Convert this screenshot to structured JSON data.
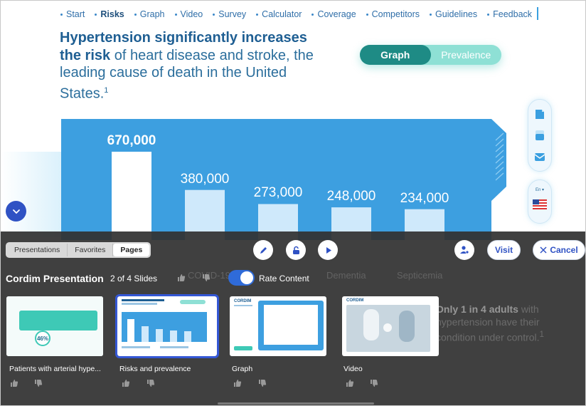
{
  "nav": {
    "items": [
      {
        "label": "Start",
        "active": false
      },
      {
        "label": "Risks",
        "active": true
      },
      {
        "label": "Graph",
        "active": false
      },
      {
        "label": "Video",
        "active": false
      },
      {
        "label": "Survey",
        "active": false
      },
      {
        "label": "Calculator",
        "active": false
      },
      {
        "label": "Coverage",
        "active": false
      },
      {
        "label": "Competitors",
        "active": false
      },
      {
        "label": "Guidelines",
        "active": false
      },
      {
        "label": "Feedback",
        "active": false
      }
    ]
  },
  "headline": {
    "bold": "Hypertension significantly increases the risk",
    "rest": " of heart disease and stroke, the leading cause of death in the United States.",
    "footnote": "1"
  },
  "view_toggle": {
    "graph": "Graph",
    "prevalence": "Prevalence",
    "selected": "Graph"
  },
  "chart_data": {
    "type": "bar",
    "values": [
      670000,
      380000,
      273000,
      248000,
      234000
    ],
    "value_labels": [
      "670,000",
      "380,000",
      "273,000",
      "248,000",
      "234,000"
    ],
    "partial_category_labels": [
      "COVID-19",
      "Dementia",
      "Septicemia"
    ],
    "ylim": [
      0,
      700000
    ]
  },
  "sidebar": {
    "language": "En",
    "icons": [
      "document-icon",
      "layers-icon",
      "mail-icon",
      "us-flag-icon"
    ]
  },
  "panel": {
    "tabs": [
      "Presentations",
      "Favorites",
      "Pages"
    ],
    "selected_tab": "Pages",
    "visit_label": "Visit",
    "cancel_label": "Cancel",
    "presentation_title": "Cordim Presentation",
    "slides_count": "2 of 4 Slides",
    "rate_label": "Rate Content",
    "rate_enabled": true,
    "background_text": {
      "covid": "COVID-19",
      "dementia": "Dementia",
      "septicemia": "Septicemia",
      "right_bold": "Only 1 in 4 adults",
      "right_rest": "with hypertension have their condition under control.",
      "right_note": "1"
    },
    "thumbnails": [
      {
        "caption": "Patients with arterial hype...",
        "mini_text": "46%",
        "selected": false
      },
      {
        "caption": "Risks and prevalence",
        "mini_text": "",
        "selected": true
      },
      {
        "caption": "Graph",
        "mini_text": "CORDIM",
        "selected": false
      },
      {
        "caption": "Video",
        "mini_text": "CORDIM",
        "selected": false
      }
    ]
  },
  "colors": {
    "chart_blue": "#3d9fe0",
    "bar_first": "#ffffff",
    "bar_other": "#cfe9fb",
    "toggle_active": "#1e8b85",
    "accent_blue": "#2f52c4"
  }
}
